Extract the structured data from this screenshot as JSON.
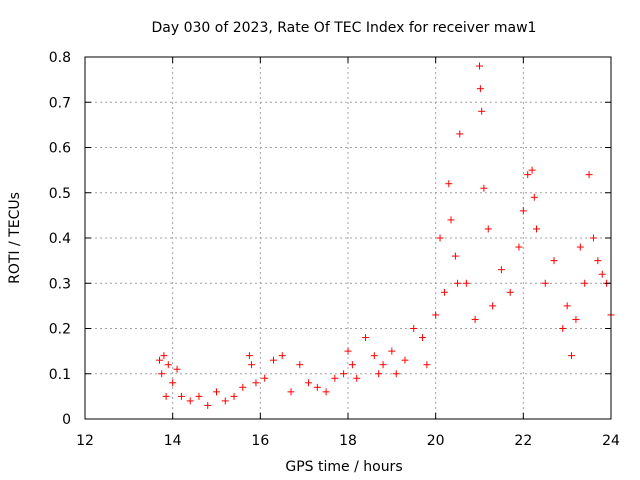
{
  "chart_data": {
    "type": "scatter",
    "title": "Day 030 of 2023, Rate Of TEC Index for receiver maw1",
    "xlabel": "GPS time / hours",
    "ylabel": "ROTI / TECUs",
    "xlim": [
      12,
      24
    ],
    "ylim": [
      0,
      0.8
    ],
    "x_ticks": [
      "12",
      "14",
      "16",
      "18",
      "20",
      "22",
      "24"
    ],
    "y_ticks": [
      "0",
      "0.1",
      "0.2",
      "0.3",
      "0.4",
      "0.5",
      "0.6",
      "0.7",
      "0.8"
    ],
    "grid": true,
    "marker": "+",
    "color": "#ff0000",
    "series": [
      {
        "name": "ROTI",
        "x": [
          13.7,
          13.75,
          13.8,
          13.85,
          13.9,
          14.0,
          14.1,
          14.2,
          14.4,
          14.6,
          14.8,
          15.0,
          15.2,
          15.4,
          15.6,
          15.75,
          15.8,
          15.9,
          16.1,
          16.3,
          16.5,
          16.7,
          16.9,
          17.1,
          17.3,
          17.5,
          17.7,
          17.9,
          18.0,
          18.1,
          18.2,
          18.4,
          18.6,
          18.7,
          18.8,
          19.0,
          19.1,
          19.3,
          19.5,
          19.7,
          19.8,
          20.0,
          20.1,
          20.2,
          20.3,
          20.35,
          20.45,
          20.5,
          20.55,
          20.7,
          20.9,
          21.0,
          21.02,
          21.05,
          21.1,
          21.2,
          21.3,
          21.5,
          21.7,
          21.9,
          22.0,
          22.1,
          22.2,
          22.25,
          22.3,
          22.5,
          22.7,
          22.9,
          23.0,
          23.1,
          23.2,
          23.3,
          23.4,
          23.5,
          23.6,
          23.7,
          23.8,
          23.9,
          24.0
        ],
        "y": [
          0.13,
          0.1,
          0.14,
          0.05,
          0.12,
          0.08,
          0.11,
          0.05,
          0.04,
          0.05,
          0.03,
          0.06,
          0.04,
          0.05,
          0.07,
          0.14,
          0.12,
          0.08,
          0.09,
          0.13,
          0.14,
          0.06,
          0.12,
          0.08,
          0.07,
          0.06,
          0.09,
          0.1,
          0.15,
          0.12,
          0.09,
          0.18,
          0.14,
          0.1,
          0.12,
          0.15,
          0.1,
          0.13,
          0.2,
          0.18,
          0.12,
          0.23,
          0.4,
          0.28,
          0.52,
          0.44,
          0.36,
          0.3,
          0.63,
          0.3,
          0.22,
          0.78,
          0.73,
          0.68,
          0.51,
          0.42,
          0.25,
          0.33,
          0.28,
          0.38,
          0.46,
          0.54,
          0.55,
          0.49,
          0.42,
          0.3,
          0.35,
          0.2,
          0.25,
          0.14,
          0.22,
          0.38,
          0.3,
          0.54,
          0.4,
          0.35,
          0.32,
          0.3,
          0.23
        ]
      }
    ]
  }
}
